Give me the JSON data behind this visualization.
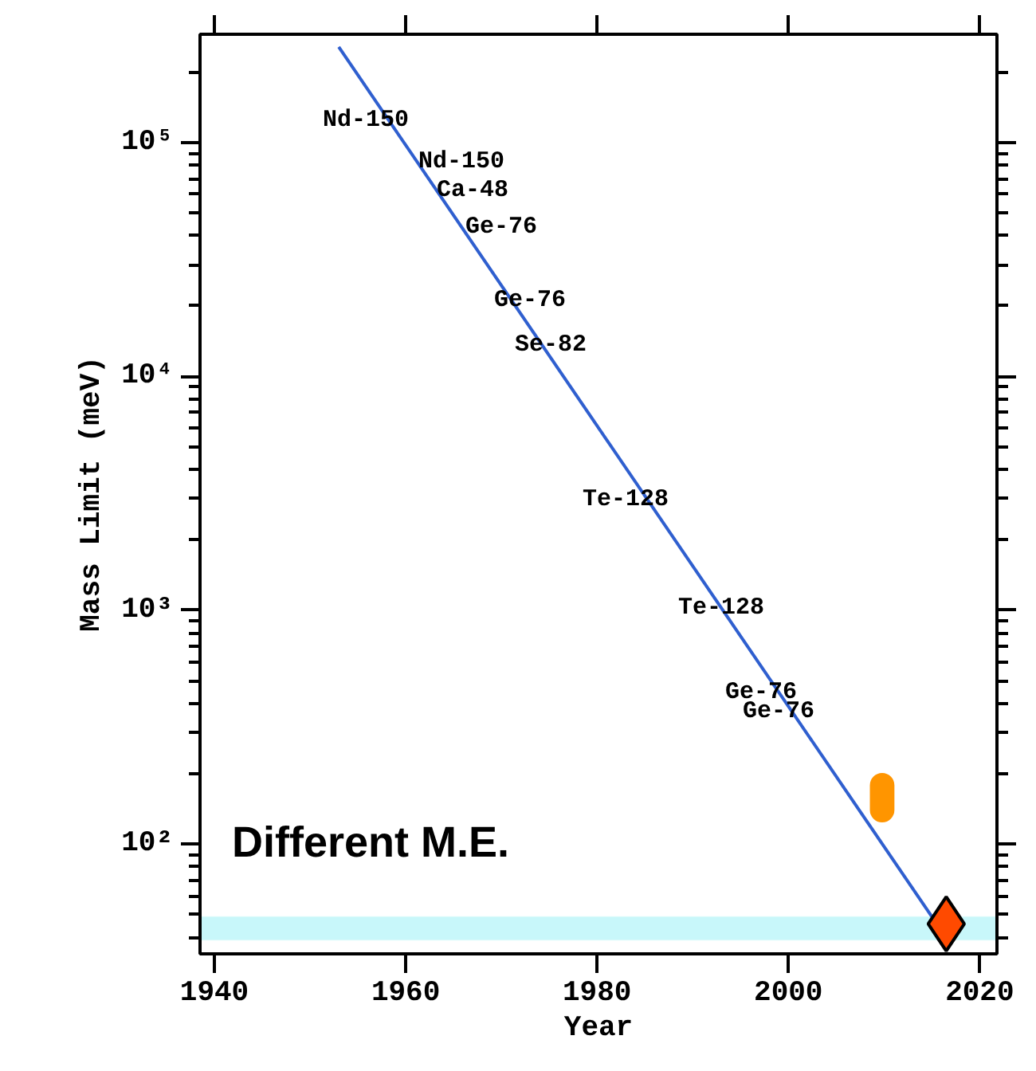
{
  "chart_data": {
    "type": "line",
    "xlabel": "Year",
    "ylabel": "Mass Limit (meV)",
    "log": "y",
    "grid": false,
    "xlim": [
      1938.5,
      2021.8
    ],
    "xticks": [
      1940,
      1960,
      1980,
      2000,
      2020
    ],
    "ylim": [
      34,
      290000
    ],
    "yticks": [
      {
        "value": 100,
        "label": "10²"
      },
      {
        "value": 1000,
        "label": "10³"
      },
      {
        "value": 10000,
        "label": "10⁴"
      },
      {
        "value": 100000,
        "label": "10⁵"
      }
    ],
    "series": [
      {
        "color": "#2f5fcf",
        "x": [
          1953,
          2015
        ],
        "values": [
          256000,
          49
        ]
      },
      {
        "type": "bar",
        "color": "#ff9500",
        "x": [
          2009.8
        ],
        "base": [
          125
        ],
        "values": [
          75
        ]
      },
      {
        "type": "scatter",
        "marker": "diamond",
        "color": "#ff4a00",
        "x": [
          2016.5
        ],
        "values": [
          45.7
        ]
      }
    ],
    "bands": [
      {
        "axis": "y",
        "from": 39,
        "to": 49,
        "color": "#c8f7fa"
      }
    ],
    "annotations": [
      "Nd-150",
      "Nd-150",
      "Ca-48",
      "Ge-76",
      "Ge-76",
      "Se-82",
      "Te-128",
      "Te-128",
      "Ge-76",
      "Ge-76",
      "Different M.E."
    ]
  }
}
